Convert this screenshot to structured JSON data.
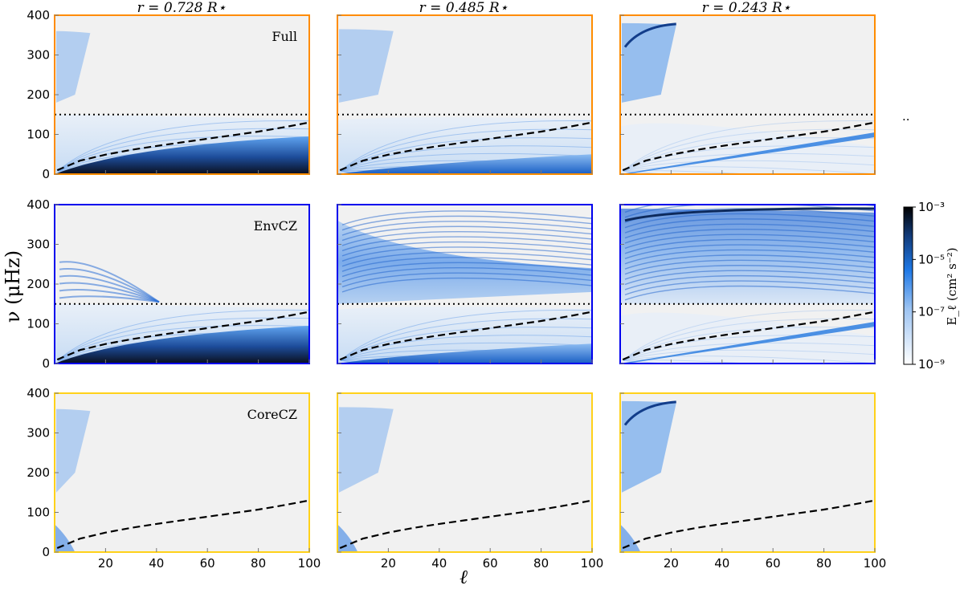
{
  "chart_data": {
    "type": "heatmap",
    "xlabel": "ℓ",
    "ylabel": "ν (μHz)",
    "xlim": [
      0,
      100
    ],
    "ylim": [
      0,
      400
    ],
    "x_ticks": [
      "20",
      "40",
      "60",
      "80",
      "100"
    ],
    "y_ticks": [
      "0",
      "100",
      "200",
      "300",
      "400"
    ],
    "column_titles": [
      "r = 0.728 R⋆",
      "r = 0.485 R⋆",
      "r = 0.243 R⋆"
    ],
    "row_labels": [
      "Full",
      "EnvCZ",
      "CoreCZ"
    ],
    "row_colors": [
      "#ff8c00",
      "#0000ee",
      "#ffd11a"
    ],
    "dotted_line_frequency": 150,
    "dashed_curve": {
      "x": [
        1,
        10,
        20,
        30,
        40,
        50,
        60,
        70,
        80,
        90,
        100
      ],
      "y": [
        10,
        34,
        49,
        61,
        71,
        80,
        89,
        98,
        107,
        118,
        130
      ]
    },
    "colorbar": {
      "label": "E_ℓ (cm² s⁻²)",
      "ticks": [
        "10⁻³",
        "10⁻⁵",
        "10⁻⁷",
        "10⁻⁹"
      ],
      "log_min": -9,
      "log_max": -3,
      "colors": [
        "#f2f2f2",
        "#1e78e6",
        "#000000"
      ]
    },
    "stray_marker": ".."
  }
}
